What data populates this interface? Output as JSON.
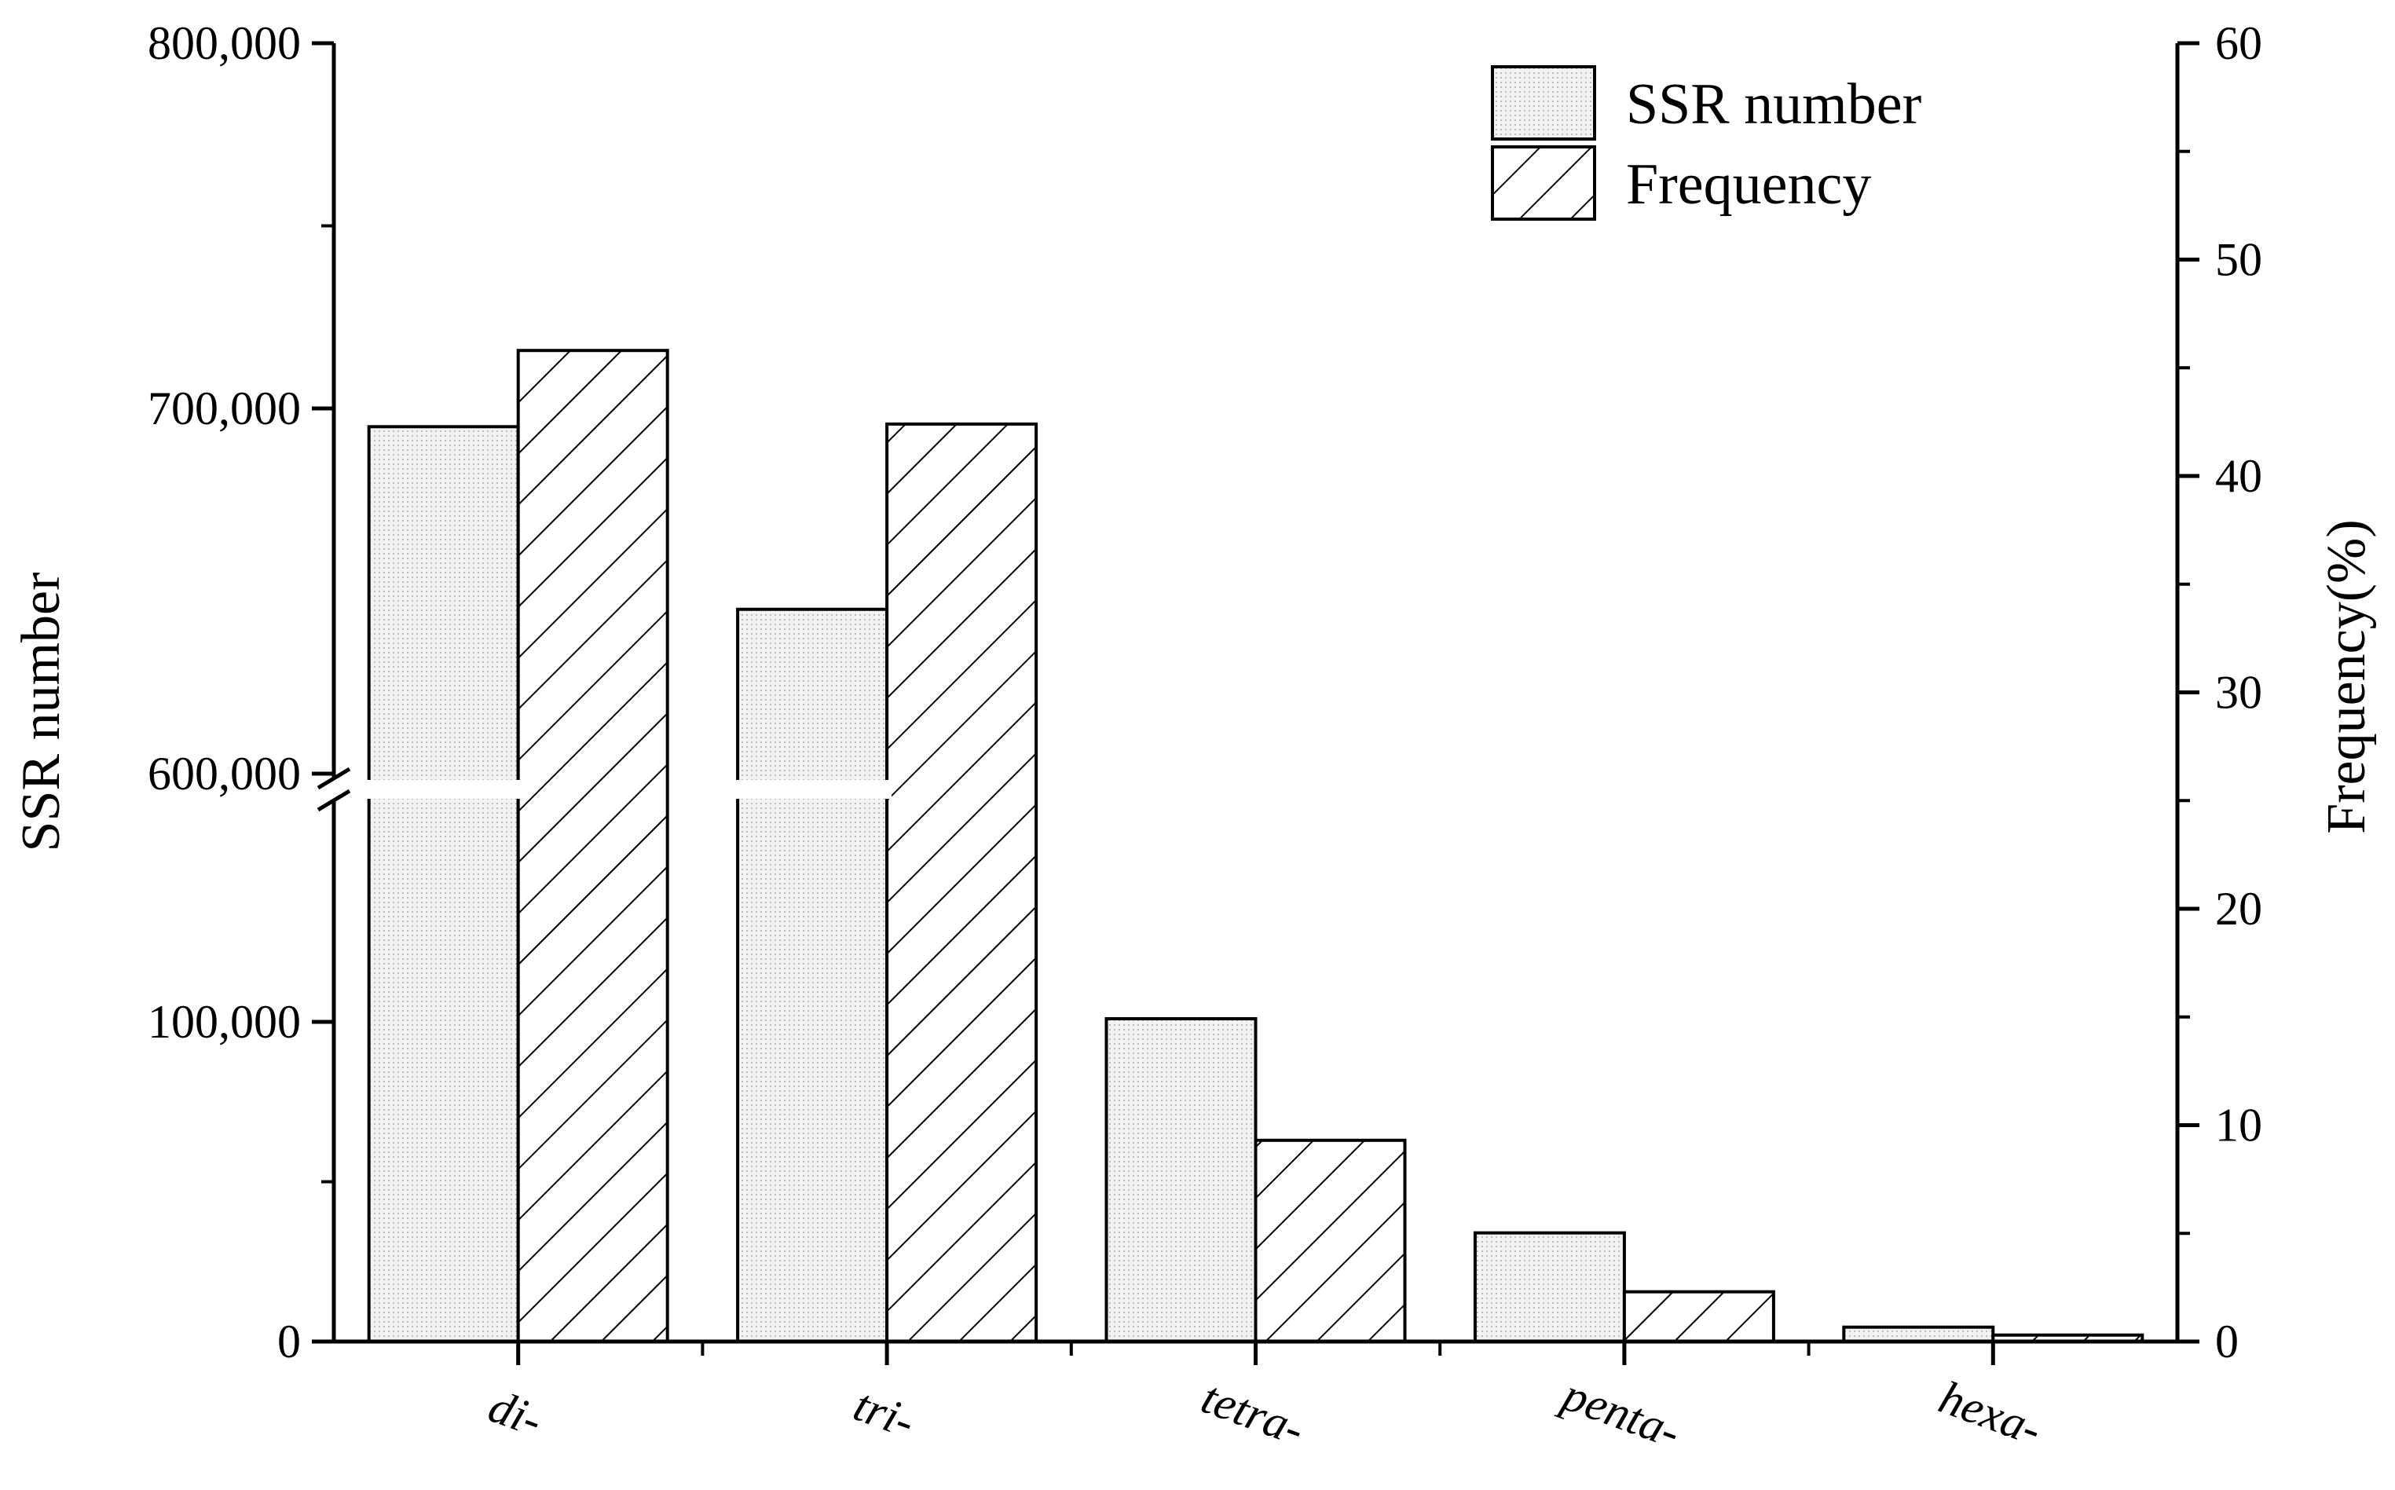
{
  "chart_data": {
    "type": "bar",
    "categories": [
      "di-",
      "tri-",
      "tetra-",
      "penta-",
      "hexa-"
    ],
    "series": [
      {
        "name": "SSR number",
        "axis": "left",
        "pattern": "dotted",
        "values": [
          695000,
          645000,
          101000,
          34000,
          4500
        ]
      },
      {
        "name": "Frequency",
        "axis": "right",
        "pattern": "hatched",
        "values": [
          45.8,
          42.4,
          9.3,
          2.3,
          0.3
        ]
      }
    ],
    "ylabel": "SSR number",
    "y2label": "Frequency(%)",
    "ylim": [
      0,
      800000
    ],
    "y_axis_break": {
      "lower_segment": [
        0,
        115000
      ],
      "upper_segment": [
        600000,
        800000
      ]
    },
    "yticks": [
      {
        "value": 0,
        "label": "0"
      },
      {
        "value": 100000,
        "label": "100,000"
      },
      {
        "value": 600000,
        "label": "600,000"
      },
      {
        "value": 700000,
        "label": "700,000"
      },
      {
        "value": 800000,
        "label": "800,000"
      }
    ],
    "y2lim": [
      0,
      60
    ],
    "y2ticks": [
      0,
      10,
      20,
      30,
      40,
      50,
      60
    ],
    "legend": {
      "placement": "top-right",
      "entries": [
        "SSR number",
        "Frequency"
      ]
    },
    "grid": false,
    "colors": {
      "bar_fill": "#eeeeee",
      "stroke": "#000000",
      "background": "#ffffff"
    }
  }
}
